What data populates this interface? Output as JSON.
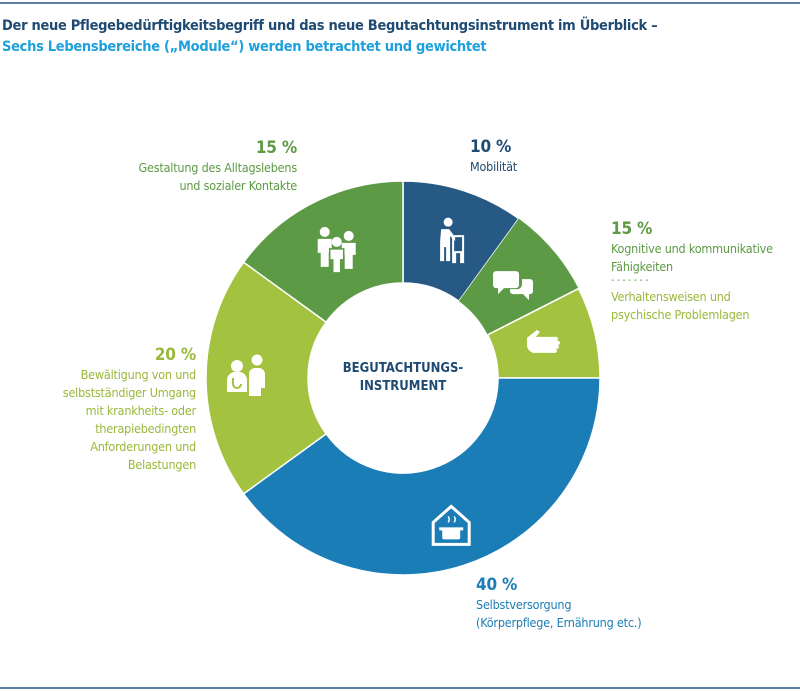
{
  "title": "Der neue Pflegebedürftigkeitsbegriff und das neue Begutachtungsinstrument im Überblick –",
  "subtitle": "Sechs Lebensbereiche („Module“) werden betrachtet und gewichtet",
  "center_label": [
    "BEGUTACHTUNGS-",
    "INSTRUMENT"
  ],
  "chart_data": {
    "type": "pie",
    "donut": true,
    "start": "top, clockwise",
    "slices": [
      {
        "label": "Mobilität",
        "value": 10,
        "pct_label": "10 %",
        "color": "#265a85",
        "icon": "person-with-walker-icon"
      },
      {
        "label": "Kognitive und kommunikative Fähigkeiten",
        "value": 7.5,
        "color": "#5d9a45",
        "icon": "speech-bubbles-icon"
      },
      {
        "label": "Verhaltensweisen und psychische Problemlagen",
        "value": 7.5,
        "color": "#a3c23f",
        "icon": "hand-icon"
      },
      {
        "label": "Selbstversorgung (Körperpflege, Ernährung etc.)",
        "value": 40,
        "pct_label": "40 %",
        "color": "#1a7db5",
        "icon": "house-cooking-pot-icon"
      },
      {
        "label": "Bewältigung von und selbstständiger Umgang mit krankheits- oder therapiebedingten Anforderungen und Belastungen",
        "value": 20,
        "pct_label": "20 %",
        "color": "#a3c23f",
        "icon": "doctor-patient-icon"
      },
      {
        "label": "Gestaltung des Alltagslebens und sozialer Kontakte",
        "value": 15,
        "pct_label": "15 %",
        "color": "#5d9a45",
        "icon": "people-group-icon"
      }
    ],
    "combined_label": {
      "pct_label": "15 %",
      "lines_a": [
        "Kognitive und kommunikative",
        "Fähigkeiten"
      ],
      "separator": "- - - - - - -",
      "lines_b": [
        "Verhaltensweisen und",
        "psychische Problemlagen"
      ]
    }
  },
  "labels": {
    "mob": [
      "Mobilität"
    ],
    "selbst": [
      "Selbstversorgung",
      "(Körperpflege, Ernährung etc.)"
    ],
    "bew": [
      "Bewältigung von und",
      "selbstständiger Umgang",
      "mit krankheits- oder",
      "therapiebedingten",
      "Anforderungen und",
      "Belastungen"
    ],
    "gest": [
      "Gestaltung des Alltagslebens",
      "und sozialer Kontakte"
    ]
  }
}
